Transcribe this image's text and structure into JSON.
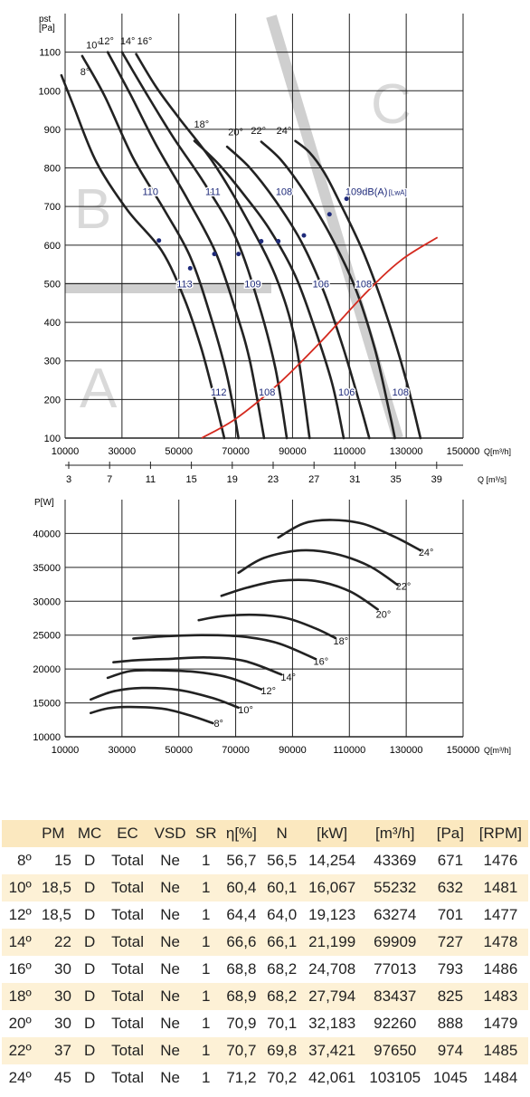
{
  "colors": {
    "curve": "#222222",
    "system": "#d42a1f",
    "dB": "#1e2a7a",
    "grid": "#222222",
    "zone_letters": "#d9d9d9",
    "table_header": "#fbe8bf",
    "table_alt_row": "#fdf1d6"
  },
  "chart_data": [
    {
      "type": "line",
      "ylabel": "pst [Pa]",
      "xlabel": "Q[m³/h]",
      "x2label": "Q [m³/s]",
      "xlim": [
        10000,
        150000
      ],
      "ylim": [
        100,
        1200
      ],
      "xticks": [
        "10000",
        "30000",
        "50000",
        "70000",
        "90000",
        "110000",
        "130000",
        "150000"
      ],
      "yticks": [
        "100",
        "200",
        "300",
        "400",
        "500",
        "600",
        "700",
        "800",
        "900",
        "1000",
        "1100"
      ],
      "x2ticks": [
        "3",
        "7",
        "11",
        "15",
        "19",
        "23",
        "27",
        "31",
        "35",
        "39"
      ],
      "grid": true,
      "zones": [
        "A",
        "B",
        "C"
      ],
      "series": [
        {
          "name": "8°",
          "points": [
            [
              8700,
              1040
            ],
            [
              13000,
              960
            ],
            [
              21000,
              815
            ],
            [
              32000,
              690
            ],
            [
              44000,
              585
            ],
            [
              52000,
              460
            ],
            [
              58000,
              330
            ],
            [
              63000,
              190
            ],
            [
              66000,
              100
            ]
          ]
        },
        {
          "name": "10°",
          "points": [
            [
              16000,
              1090
            ],
            [
              24000,
              985
            ],
            [
              34000,
              825
            ],
            [
              45000,
              690
            ],
            [
              54000,
              570
            ],
            [
              61000,
              420
            ],
            [
              67000,
              260
            ],
            [
              71000,
              100
            ]
          ]
        },
        {
          "name": "12°",
          "points": [
            [
              25000,
              1100
            ],
            [
              33000,
              990
            ],
            [
              42000,
              860
            ],
            [
              53000,
              720
            ],
            [
              63000,
              580
            ],
            [
              70000,
              430
            ],
            [
              75000,
              300
            ],
            [
              80000,
              100
            ]
          ]
        },
        {
          "name": "14°",
          "points": [
            [
              30000,
              1100
            ],
            [
              38000,
              1000
            ],
            [
              48000,
              880
            ],
            [
              59000,
              760
            ],
            [
              70000,
              620
            ],
            [
              78000,
              450
            ],
            [
              84000,
              280
            ],
            [
              88000,
              100
            ]
          ]
        },
        {
          "name": "16°",
          "points": [
            [
              35000,
              1095
            ],
            [
              42000,
              1010
            ],
            [
              50000,
              930
            ],
            [
              62000,
              815
            ],
            [
              73000,
              680
            ],
            [
              84000,
              520
            ],
            [
              91000,
              350
            ],
            [
              96000,
              100
            ]
          ]
        },
        {
          "name": "18°",
          "points": [
            [
              55500,
              870
            ],
            [
              64000,
              810
            ],
            [
              73000,
              730
            ],
            [
              82000,
              640
            ],
            [
              91000,
              520
            ],
            [
              98000,
              380
            ],
            [
              104000,
              240
            ],
            [
              108000,
              100
            ]
          ]
        },
        {
          "name": "20°",
          "points": [
            [
              67000,
              855
            ],
            [
              75000,
              800
            ],
            [
              84000,
              715
            ],
            [
              93000,
              610
            ],
            [
              101000,
              480
            ],
            [
              108000,
              330
            ],
            [
              114000,
              180
            ],
            [
              117000,
              100
            ]
          ]
        },
        {
          "name": "22°",
          "points": [
            [
              79000,
              868
            ],
            [
              86000,
              820
            ],
            [
              94000,
              740
            ],
            [
              103000,
              630
            ],
            [
              112000,
              490
            ],
            [
              119000,
              330
            ],
            [
              124000,
              170
            ],
            [
              126000,
              100
            ]
          ]
        },
        {
          "name": "24°",
          "points": [
            [
              91000,
              870
            ],
            [
              96000,
              840
            ],
            [
              101000,
              790
            ],
            [
              106000,
              720
            ],
            [
              115000,
              580
            ],
            [
              123000,
              420
            ],
            [
              130000,
              250
            ],
            [
              135000,
              100
            ]
          ]
        }
      ],
      "system_curve": [
        [
          58000,
          100
        ],
        [
          70000,
          150
        ],
        [
          85000,
          240
        ],
        [
          100000,
          350
        ],
        [
          115000,
          470
        ],
        [
          128000,
          560
        ],
        [
          141000,
          620
        ]
      ],
      "angle_labels": [
        {
          "text": "8°",
          "x": 17000,
          "y": 1040
        },
        {
          "text": "10°",
          "x": 20000,
          "y": 1110
        },
        {
          "text": "12°",
          "x": 24500,
          "y": 1120
        },
        {
          "text": "14°",
          "x": 32000,
          "y": 1120
        },
        {
          "text": "16°",
          "x": 38000,
          "y": 1120
        },
        {
          "text": "18°",
          "x": 58000,
          "y": 905
        },
        {
          "text": "20°",
          "x": 70000,
          "y": 885
        },
        {
          "text": "22°",
          "x": 78000,
          "y": 888
        },
        {
          "text": "24°",
          "x": 87000,
          "y": 888
        }
      ],
      "db_labels": [
        {
          "text": "110",
          "x": 40000,
          "y": 730
        },
        {
          "text": "111",
          "x": 62000,
          "y": 730
        },
        {
          "text": "108",
          "x": 87000,
          "y": 730
        },
        {
          "text": "109dB(A)",
          "x": 116000,
          "y": 730
        },
        {
          "text": "[LwA]",
          "x": 127000,
          "y": 730
        },
        {
          "text": "113",
          "x": 52000,
          "y": 490
        },
        {
          "text": "109",
          "x": 76000,
          "y": 490
        },
        {
          "text": "106",
          "x": 100000,
          "y": 490
        },
        {
          "text": "108",
          "x": 115000,
          "y": 490
        },
        {
          "text": "112",
          "x": 64000,
          "y": 210
        },
        {
          "text": "108",
          "x": 81000,
          "y": 210
        },
        {
          "text": "106",
          "x": 109000,
          "y": 210
        },
        {
          "text": "108",
          "x": 128000,
          "y": 210
        }
      ],
      "markers": [
        [
          43000,
          612
        ],
        [
          54000,
          540
        ],
        [
          62500,
          577
        ],
        [
          71000,
          577
        ],
        [
          79000,
          610
        ],
        [
          85000,
          610
        ],
        [
          94000,
          625
        ],
        [
          103000,
          680
        ],
        [
          109000,
          720
        ]
      ]
    },
    {
      "type": "line",
      "ylabel": "P[W]",
      "xlabel": "Q[m³/h]",
      "xlim": [
        10000,
        150000
      ],
      "ylim": [
        10000,
        45000
      ],
      "xticks": [
        "10000",
        "30000",
        "50000",
        "70000",
        "90000",
        "110000",
        "130000",
        "150000"
      ],
      "yticks": [
        "10000",
        "15000",
        "20000",
        "25000",
        "30000",
        "35000",
        "40000"
      ],
      "grid": true,
      "series": [
        {
          "name": "8°",
          "points": [
            [
              19000,
              13500
            ],
            [
              25000,
              14200
            ],
            [
              33000,
              14400
            ],
            [
              45000,
              14100
            ],
            [
              55000,
              13000
            ],
            [
              62000,
              12000
            ]
          ]
        },
        {
          "name": "10°",
          "points": [
            [
              19000,
              15500
            ],
            [
              27000,
              16700
            ],
            [
              37000,
              17200
            ],
            [
              50000,
              16900
            ],
            [
              62000,
              15700
            ],
            [
              71000,
              14300
            ]
          ]
        },
        {
          "name": "12°",
          "points": [
            [
              25000,
              18700
            ],
            [
              33000,
              19700
            ],
            [
              43000,
              19800
            ],
            [
              55000,
              19600
            ],
            [
              67000,
              18800
            ],
            [
              79000,
              17000
            ]
          ]
        },
        {
          "name": "14°",
          "points": [
            [
              27000,
              21000
            ],
            [
              35000,
              21300
            ],
            [
              47000,
              21500
            ],
            [
              60000,
              21700
            ],
            [
              73000,
              21200
            ],
            [
              86000,
              19200
            ]
          ]
        },
        {
          "name": "16°",
          "points": [
            [
              34000,
              24500
            ],
            [
              44000,
              24800
            ],
            [
              58000,
              25000
            ],
            [
              72000,
              24800
            ],
            [
              85000,
              23800
            ],
            [
              98000,
              21500
            ]
          ]
        },
        {
          "name": "18°",
          "points": [
            [
              57000,
              27200
            ],
            [
              65000,
              27800
            ],
            [
              77000,
              28000
            ],
            [
              88000,
              27500
            ],
            [
              98000,
              26000
            ],
            [
              105000,
              24600
            ]
          ]
        },
        {
          "name": "20°",
          "points": [
            [
              65000,
              30800
            ],
            [
              74000,
              32000
            ],
            [
              85000,
              33000
            ],
            [
              98000,
              33000
            ],
            [
              110000,
              31500
            ],
            [
              120000,
              28800
            ]
          ]
        },
        {
          "name": "22°",
          "points": [
            [
              71000,
              34200
            ],
            [
              80000,
              36400
            ],
            [
              93000,
              37500
            ],
            [
              105000,
              37000
            ],
            [
              117000,
              35200
            ],
            [
              127000,
              32400
            ]
          ]
        },
        {
          "name": "24°",
          "points": [
            [
              85000,
              39400
            ],
            [
              94000,
              41500
            ],
            [
              104000,
              42000
            ],
            [
              115000,
              41400
            ],
            [
              126000,
              39500
            ],
            [
              135000,
              37500
            ]
          ]
        }
      ],
      "angle_labels": [
        {
          "text": "8°",
          "x": 64000,
          "y": 11500
        },
        {
          "text": "10°",
          "x": 73500,
          "y": 13500
        },
        {
          "text": "12°",
          "x": 81500,
          "y": 16300
        },
        {
          "text": "14°",
          "x": 88500,
          "y": 18300
        },
        {
          "text": "16°",
          "x": 100000,
          "y": 20600
        },
        {
          "text": "18°",
          "x": 107000,
          "y": 23600
        },
        {
          "text": "20°",
          "x": 122000,
          "y": 27600
        },
        {
          "text": "22°",
          "x": 129000,
          "y": 31700
        },
        {
          "text": "24°",
          "x": 137000,
          "y": 36700
        }
      ]
    }
  ],
  "table": {
    "headers": [
      "",
      "PM",
      "MC",
      "EC",
      "VSD",
      "SR",
      "η[%]",
      "N",
      "[kW]",
      "[m³/h]",
      "[Pa]",
      "[RPM]"
    ],
    "rows": [
      [
        "8º",
        "15",
        "D",
        "Total",
        "Ne",
        "1",
        "56,7",
        "56,5",
        "14,254",
        "43369",
        "671",
        "1476"
      ],
      [
        "10º",
        "18,5",
        "D",
        "Total",
        "Ne",
        "1",
        "60,4",
        "60,1",
        "16,067",
        "55232",
        "632",
        "1481"
      ],
      [
        "12º",
        "18,5",
        "D",
        "Total",
        "Ne",
        "1",
        "64,4",
        "64,0",
        "19,123",
        "63274",
        "701",
        "1477"
      ],
      [
        "14º",
        "22",
        "D",
        "Total",
        "Ne",
        "1",
        "66,6",
        "66,1",
        "21,199",
        "69909",
        "727",
        "1478"
      ],
      [
        "16º",
        "30",
        "D",
        "Total",
        "Ne",
        "1",
        "68,8",
        "68,2",
        "24,708",
        "77013",
        "793",
        "1486"
      ],
      [
        "18º",
        "30",
        "D",
        "Total",
        "Ne",
        "1",
        "68,9",
        "68,2",
        "27,794",
        "83437",
        "825",
        "1483"
      ],
      [
        "20º",
        "30",
        "D",
        "Total",
        "Ne",
        "1",
        "70,9",
        "70,1",
        "32,183",
        "92260",
        "888",
        "1479"
      ],
      [
        "22º",
        "37",
        "D",
        "Total",
        "Ne",
        "1",
        "70,7",
        "69,8",
        "37,421",
        "97650",
        "974",
        "1485"
      ],
      [
        "24º",
        "45",
        "D",
        "Total",
        "Ne",
        "1",
        "71,2",
        "70,2",
        "42,061",
        "103105",
        "1045",
        "1484"
      ]
    ]
  }
}
